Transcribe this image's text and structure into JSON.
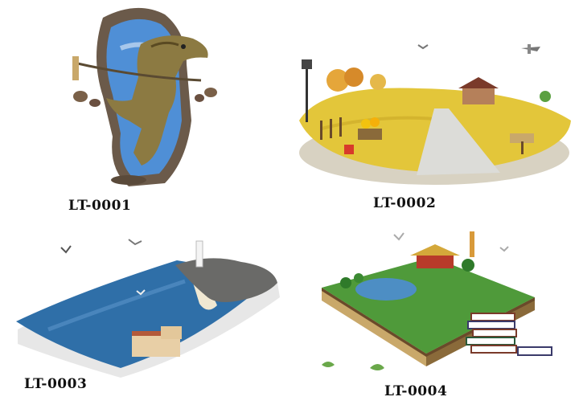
{
  "products": [
    {
      "code": "LT-0001",
      "illustration": "dinosaur-breaking-wall-image"
    },
    {
      "code": "LT-0002",
      "illustration": "meadow-island-path-image"
    },
    {
      "code": "LT-0003",
      "illustration": "coastal-lighthouse-book-image"
    },
    {
      "code": "LT-0004",
      "illustration": "landscape-on-book-image"
    }
  ],
  "colors": {
    "label_text": "#111111",
    "sky": "#4f8fd6",
    "meadow": "#e3c63a",
    "sea": "#2f6fa8",
    "grass": "#4f9a3a",
    "soil": "#8a6a3a"
  }
}
